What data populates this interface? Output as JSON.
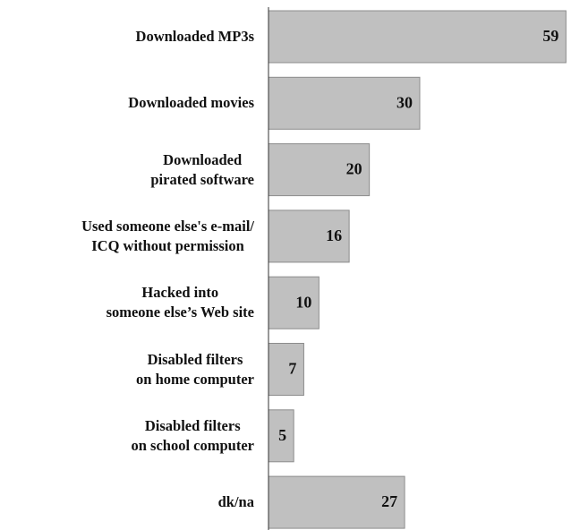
{
  "chart_data": {
    "type": "bar",
    "orientation": "horizontal",
    "categories": [
      "Downloaded MP3s",
      "Downloaded movies",
      "Downloaded\npirated software",
      "Used someone else's e-mail/\nICQ without permission",
      "Hacked into\nsomeone else’s Web site",
      "Disabled filters\non home computer",
      "Disabled filters\non school computer",
      "dk/na"
    ],
    "values": [
      59,
      30,
      20,
      16,
      10,
      7,
      5,
      27
    ],
    "color": "#c0c0c0",
    "xlim": [
      0,
      60
    ]
  }
}
